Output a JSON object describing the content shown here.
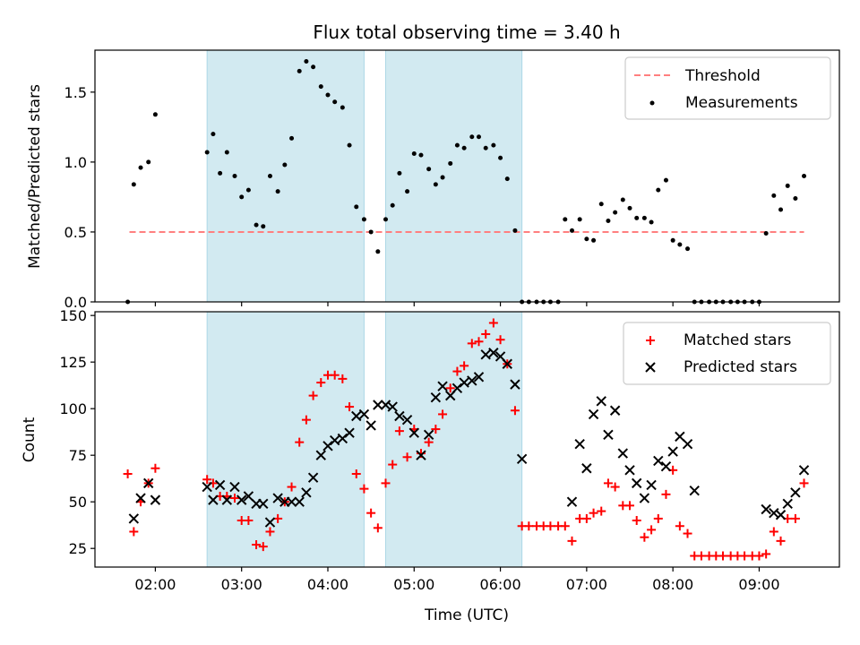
{
  "figure": {
    "title": "Flux total observing time = 3.40 h",
    "xlabel": "Time (UTC)",
    "xticklabels": [
      "02:00",
      "03:00",
      "04:00",
      "05:00",
      "06:00",
      "07:00",
      "08:00",
      "09:00"
    ],
    "xtick_hours": [
      2,
      3,
      4,
      5,
      6,
      7,
      8,
      9
    ],
    "xlim_hours": [
      1.3,
      9.93
    ]
  },
  "colors": {
    "threshold": "#ff7f7f",
    "measurements": "#000000",
    "matched": "#ff0000",
    "predicted": "#000000",
    "shade": "#add8e6"
  },
  "chart_data": [
    {
      "type": "scatter",
      "panel": "top",
      "ylabel": "Matched/Predicted stars",
      "ylim": [
        0,
        1.8
      ],
      "yticks": [
        0.0,
        0.5,
        1.0,
        1.5
      ],
      "yticklabels": [
        "0.0",
        "0.5",
        "1.0",
        "1.5"
      ],
      "legend": {
        "position": "top-right",
        "entries": [
          "Threshold",
          "Measurements"
        ]
      },
      "shaded_spans_hours": [
        [
          2.6,
          4.42
        ],
        [
          4.67,
          6.25
        ]
      ],
      "threshold": {
        "name": "Threshold",
        "y": 0.5,
        "x_range_hours": [
          1.7,
          9.52
        ]
      },
      "series": [
        {
          "name": "Measurements",
          "x_hours": [
            1.68,
            1.75,
            1.83,
            1.92,
            2.0,
            2.6,
            2.67,
            2.75,
            2.83,
            2.92,
            3.0,
            3.08,
            3.17,
            3.25,
            3.33,
            3.42,
            3.5,
            3.58,
            3.67,
            3.75,
            3.83,
            3.92,
            4.0,
            4.08,
            4.17,
            4.25,
            4.33,
            4.42,
            4.5,
            4.58,
            4.67,
            4.75,
            4.83,
            4.92,
            5.0,
            5.08,
            5.17,
            5.25,
            5.33,
            5.42,
            5.5,
            5.58,
            5.67,
            5.75,
            5.83,
            5.92,
            6.0,
            6.08,
            6.17,
            6.25,
            6.33,
            6.42,
            6.5,
            6.58,
            6.67,
            6.75,
            6.83,
            6.92,
            7.0,
            7.08,
            7.17,
            7.25,
            7.33,
            7.42,
            7.5,
            7.58,
            7.67,
            7.75,
            7.83,
            7.92,
            8.0,
            8.08,
            8.17,
            8.25,
            8.33,
            8.42,
            8.5,
            8.58,
            8.67,
            8.75,
            8.83,
            8.92,
            9.0,
            9.08,
            9.17,
            9.25,
            9.33,
            9.42,
            9.52
          ],
          "y": [
            0.0,
            0.84,
            0.96,
            1.0,
            1.34,
            1.07,
            1.2,
            0.92,
            1.07,
            0.9,
            0.75,
            0.8,
            0.55,
            0.54,
            0.9,
            0.79,
            0.98,
            1.17,
            1.65,
            1.72,
            1.68,
            1.54,
            1.48,
            1.43,
            1.39,
            1.12,
            0.68,
            0.59,
            0.5,
            0.36,
            0.59,
            0.69,
            0.92,
            0.79,
            1.06,
            1.05,
            0.95,
            0.84,
            0.89,
            0.99,
            1.12,
            1.1,
            1.18,
            1.18,
            1.1,
            1.12,
            1.03,
            0.88,
            0.51,
            0.0,
            0.0,
            0.0,
            0.0,
            0.0,
            0.0,
            0.59,
            0.51,
            0.59,
            0.45,
            0.44,
            0.7,
            0.58,
            0.64,
            0.73,
            0.67,
            0.6,
            0.6,
            0.57,
            0.8,
            0.87,
            0.44,
            0.41,
            0.38,
            0.0,
            0.0,
            0.0,
            0.0,
            0.0,
            0.0,
            0.0,
            0.0,
            0.0,
            0.0,
            0.49,
            0.76,
            0.66,
            0.83,
            0.74,
            0.9
          ]
        }
      ]
    },
    {
      "type": "scatter",
      "panel": "bottom",
      "ylabel": "Count",
      "ylim": [
        15,
        152
      ],
      "yticks": [
        25,
        50,
        75,
        100,
        125,
        150
      ],
      "yticklabels": [
        "25",
        "50",
        "75",
        "100",
        "125",
        "150"
      ],
      "legend": {
        "position": "top-right",
        "entries": [
          "Matched stars",
          "Predicted stars"
        ]
      },
      "shaded_spans_hours": [
        [
          2.6,
          4.42
        ],
        [
          4.67,
          6.25
        ]
      ],
      "series": [
        {
          "name": "Matched stars",
          "marker": "+",
          "x_hours": [
            1.68,
            1.75,
            1.83,
            1.92,
            2.0,
            2.6,
            2.67,
            2.75,
            2.83,
            2.92,
            3.0,
            3.08,
            3.17,
            3.25,
            3.33,
            3.42,
            3.5,
            3.58,
            3.67,
            3.75,
            3.83,
            3.92,
            4.0,
            4.08,
            4.17,
            4.25,
            4.33,
            4.42,
            4.5,
            4.58,
            4.67,
            4.75,
            4.83,
            4.92,
            5.0,
            5.08,
            5.17,
            5.25,
            5.33,
            5.42,
            5.5,
            5.58,
            5.67,
            5.75,
            5.83,
            5.92,
            6.0,
            6.08,
            6.17,
            6.25,
            6.33,
            6.42,
            6.5,
            6.58,
            6.67,
            6.75,
            6.83,
            6.92,
            7.0,
            7.08,
            7.17,
            7.25,
            7.33,
            7.42,
            7.5,
            7.58,
            7.67,
            7.75,
            7.83,
            7.92,
            8.0,
            8.08,
            8.17,
            8.25,
            8.33,
            8.42,
            8.5,
            8.58,
            8.67,
            8.75,
            8.83,
            8.92,
            9.0,
            9.08,
            9.17,
            9.25,
            9.33,
            9.42,
            9.52
          ],
          "y": [
            65,
            34,
            50,
            60,
            68,
            62,
            60,
            53,
            53,
            52,
            40,
            40,
            27,
            26,
            34,
            41,
            50,
            58,
            82,
            94,
            107,
            114,
            118,
            118,
            116,
            101,
            65,
            57,
            44,
            36,
            60,
            70,
            88,
            74,
            89,
            76,
            82,
            89,
            97,
            111,
            120,
            123,
            135,
            136,
            140,
            146,
            137,
            124,
            99,
            37,
            37,
            37,
            37,
            37,
            37,
            37,
            29,
            41,
            41,
            44,
            45,
            60,
            58,
            48,
            48,
            40,
            31,
            35,
            41,
            54,
            67,
            37,
            33,
            21,
            21,
            21,
            21,
            21,
            21,
            21,
            21,
            21,
            21,
            22,
            34,
            29,
            41,
            41,
            60
          ]
        },
        {
          "name": "Predicted stars",
          "marker": "x",
          "x_hours": [
            1.75,
            1.83,
            1.92,
            2.0,
            2.6,
            2.67,
            2.75,
            2.83,
            2.92,
            3.0,
            3.08,
            3.17,
            3.25,
            3.33,
            3.42,
            3.5,
            3.58,
            3.67,
            3.75,
            3.83,
            3.92,
            4.0,
            4.08,
            4.17,
            4.25,
            4.33,
            4.42,
            4.5,
            4.58,
            4.67,
            4.75,
            4.83,
            4.92,
            5.0,
            5.08,
            5.17,
            5.25,
            5.33,
            5.42,
            5.5,
            5.58,
            5.67,
            5.75,
            5.83,
            5.92,
            6.0,
            6.08,
            6.17,
            6.25,
            6.83,
            6.92,
            7.0,
            7.08,
            7.17,
            7.25,
            7.33,
            7.42,
            7.5,
            7.58,
            7.67,
            7.75,
            7.83,
            7.92,
            8.0,
            8.08,
            8.17,
            8.25,
            9.08,
            9.17,
            9.25,
            9.33,
            9.42,
            9.52
          ],
          "y": [
            41,
            52,
            60,
            51,
            58,
            51,
            59,
            51,
            58,
            51,
            53,
            49,
            49,
            39,
            52,
            50,
            50,
            50,
            55,
            63,
            75,
            80,
            83,
            84,
            87,
            96,
            97,
            91,
            102,
            102,
            101,
            96,
            94,
            87,
            75,
            86,
            106,
            112,
            107,
            111,
            114,
            115,
            117,
            129,
            130,
            128,
            124,
            113,
            73,
            50,
            81,
            68,
            97,
            104,
            86,
            99,
            76,
            67,
            60,
            52,
            59,
            72,
            69,
            77,
            85,
            81,
            56,
            46,
            44,
            43,
            49,
            55,
            67
          ]
        }
      ]
    }
  ]
}
